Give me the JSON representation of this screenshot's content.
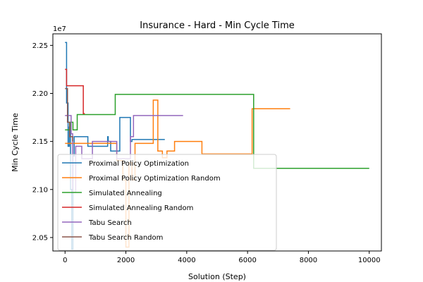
{
  "chart_data": {
    "type": "line",
    "title": "Insurance - Hard - Min Cycle Time",
    "xlabel": "Solution (Step)",
    "ylabel": "Min Cycle Time",
    "y_offset_label": "1e7",
    "y_multiplier": 10000000,
    "xlim": [
      -400,
      10400
    ],
    "ylim": [
      20.36,
      22.62
    ],
    "x_ticks": [
      0,
      2000,
      4000,
      6000,
      8000,
      10000
    ],
    "x_tick_labels": [
      "0",
      "2000",
      "4000",
      "6000",
      "8000",
      "10000"
    ],
    "y_ticks": [
      20.5,
      21.0,
      21.5,
      22.0,
      22.5
    ],
    "y_tick_labels": [
      "2.05",
      "2.10",
      "2.15",
      "2.20",
      "2.25"
    ],
    "grid": false,
    "legend_position": "lower-left",
    "series": [
      {
        "name": "Proximal Policy Optimization",
        "color": "#1f77b4",
        "step": true,
        "x": [
          0,
          50,
          100,
          140,
          180,
          220,
          260,
          300,
          400,
          500,
          600,
          750,
          1000,
          1400,
          1420,
          1500,
          1600,
          1800,
          2000,
          2150,
          2200,
          2300,
          2600,
          3000,
          3280
        ],
        "y": [
          22.53,
          21.9,
          21.45,
          21.65,
          21.0,
          20.38,
          21.35,
          21.55,
          21.55,
          21.55,
          21.55,
          21.45,
          21.45,
          21.55,
          21.5,
          21.4,
          21.4,
          21.75,
          21.75,
          21.5,
          21.52,
          21.52,
          21.52,
          21.52,
          21.52
        ]
      },
      {
        "name": "Proximal Policy Optimization Random",
        "color": "#ff7f0e",
        "step": true,
        "x": [
          0,
          700,
          1500,
          1700,
          1900,
          2000,
          2100,
          2200,
          2300,
          2900,
          3050,
          3200,
          3350,
          3600,
          3800,
          4500,
          6000,
          6150,
          7400
        ],
        "y": [
          21.48,
          21.48,
          21.48,
          21.3,
          21.1,
          20.4,
          21.28,
          21.1,
          21.48,
          21.93,
          21.4,
          21.33,
          21.4,
          21.5,
          21.5,
          21.37,
          21.37,
          21.84,
          21.84
        ]
      },
      {
        "name": "Simulated Annealing",
        "color": "#2ca02c",
        "step": true,
        "x": [
          0,
          180,
          260,
          400,
          1000,
          1650,
          3000,
          5000,
          6150,
          6200,
          8000,
          10000
        ],
        "y": [
          21.62,
          21.7,
          21.62,
          21.78,
          21.78,
          21.99,
          21.99,
          21.99,
          21.99,
          21.22,
          21.22,
          21.22
        ]
      },
      {
        "name": "Simulated Annealing Random",
        "color": "#d62728",
        "step": true,
        "x": [
          0,
          50,
          600,
          650
        ],
        "y": [
          22.25,
          22.08,
          21.79,
          21.79
        ]
      },
      {
        "name": "Tabu Search",
        "color": "#9467bd",
        "step": true,
        "x": [
          0,
          200,
          250,
          350,
          550,
          900,
          1700,
          2150,
          2250,
          2500,
          3000,
          3880
        ],
        "y": [
          21.77,
          21.58,
          20.97,
          21.45,
          21.32,
          21.5,
          21.32,
          21.55,
          21.77,
          21.77,
          21.77,
          21.77
        ]
      },
      {
        "name": "Tabu Search Random",
        "color": "#8c564b",
        "step": true,
        "x": [
          0,
          80,
          150,
          250
        ],
        "y": [
          22.05,
          21.7,
          21.55,
          21.5
        ]
      }
    ]
  }
}
